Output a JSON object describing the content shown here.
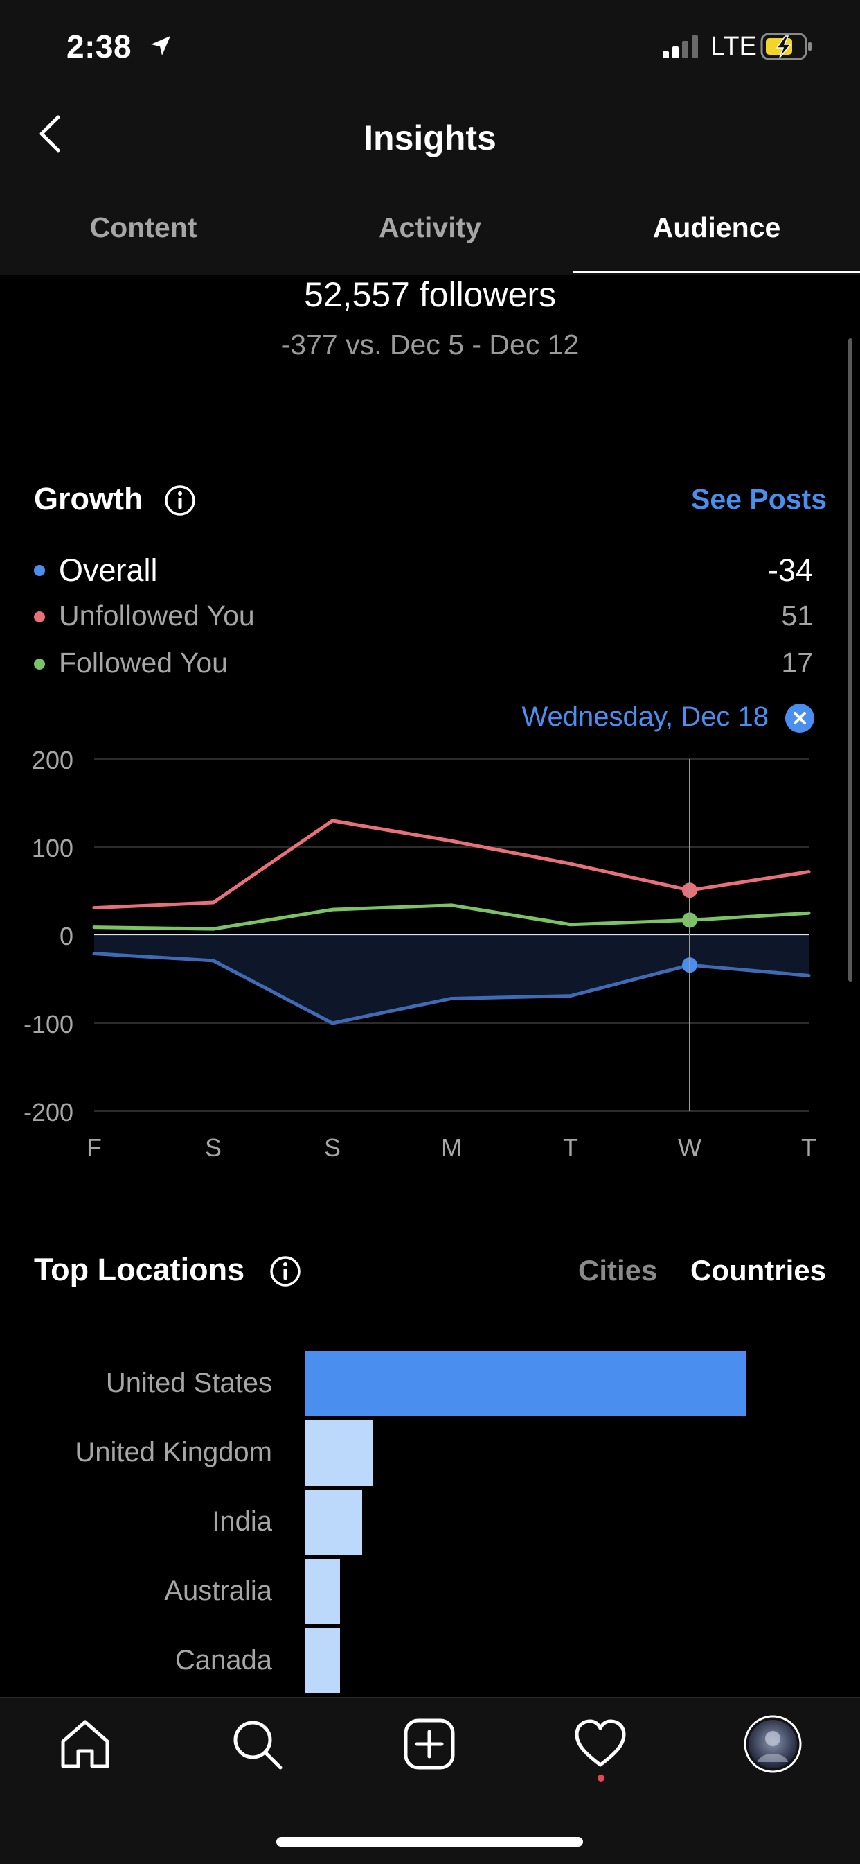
{
  "status_bar": {
    "time": "2:38",
    "network": "LTE"
  },
  "header": {
    "title": "Insights"
  },
  "tabs": [
    {
      "label": "Content",
      "active": false
    },
    {
      "label": "Activity",
      "active": false
    },
    {
      "label": "Audience",
      "active": true
    }
  ],
  "summary": {
    "followers": "52,557 followers",
    "delta": "-377 vs. Dec 5 - Dec 12"
  },
  "growth": {
    "title": "Growth",
    "see_posts": "See Posts",
    "legend": [
      {
        "label": "Overall",
        "value": "-34",
        "color": "#4a8ff0"
      },
      {
        "label": "Unfollowed You",
        "value": "51",
        "color": "#e8707a"
      },
      {
        "label": "Followed You",
        "value": "17",
        "color": "#7cc365"
      }
    ],
    "selected_date": "Wednesday, Dec 18"
  },
  "chart_data": {
    "type": "line",
    "x": [
      "F",
      "S",
      "S",
      "M",
      "T",
      "W",
      "T"
    ],
    "ylim": [
      -200,
      200
    ],
    "yticks": [
      "200",
      "100",
      "0",
      "-100",
      "-200"
    ],
    "ytick_values": [
      200,
      100,
      0,
      -100,
      -200
    ],
    "grid": true,
    "selected_index": 5,
    "series": [
      {
        "name": "Unfollowed You",
        "color": "#e8707a",
        "values": [
          31,
          37,
          130,
          107,
          81,
          51,
          72
        ]
      },
      {
        "name": "Followed You",
        "color": "#7cc365",
        "values": [
          9,
          7,
          29,
          34,
          12,
          17,
          25
        ]
      },
      {
        "name": "Overall",
        "color": "#3f6ab4",
        "values": [
          -21,
          -29,
          -100,
          -72,
          -69,
          -34,
          -46
        ]
      }
    ]
  },
  "top_locations": {
    "title": "Top Locations",
    "toggle_cities": "Cities",
    "toggle_countries": "Countries",
    "countries": [
      {
        "name": "United States",
        "value": 100,
        "color": "#4a8ff0"
      },
      {
        "name": "United Kingdom",
        "value": 15.5,
        "color": "#bcd8fa"
      },
      {
        "name": "India",
        "value": 13,
        "color": "#bcd8fa"
      },
      {
        "name": "Australia",
        "value": 8,
        "color": "#bcd8fa"
      },
      {
        "name": "Canada",
        "value": 8,
        "color": "#bcd8fa"
      }
    ]
  },
  "bottom_nav": [
    "home-icon",
    "search-icon",
    "add-post-icon",
    "activity-heart-icon",
    "profile-avatar"
  ]
}
